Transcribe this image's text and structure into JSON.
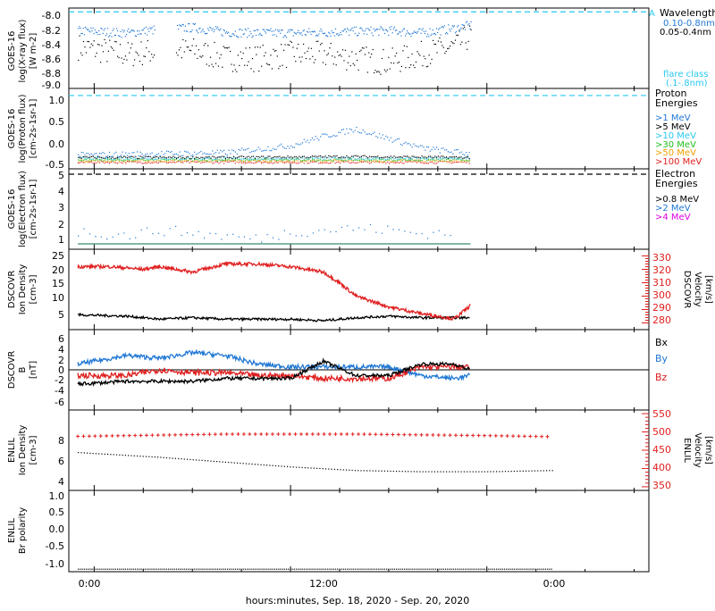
{
  "colors": {
    "black": "#000000",
    "blue": "#1f77d4",
    "cyan": "#28c8f0",
    "green": "#23c01e",
    "orange": "#f0a000",
    "red": "#e02020",
    "magenta": "#e000e0"
  },
  "x_axis": {
    "label": "hours:minutes, Sep. 18, 2020 - Sep. 20, 2020",
    "ticks": [
      "0:00",
      "12:00",
      "0:00"
    ]
  },
  "panels": {
    "xray": {
      "ylabel": [
        "GOES-16",
        "log(X-ray flux)",
        "[W m-2]"
      ],
      "ticks": [
        "-8.0",
        "-8.2",
        "-8.4",
        "-8.6",
        "-8.8",
        "-9.0"
      ],
      "legend_title": "Wavelength",
      "legend_marker": "A",
      "legend": [
        "0.10-0.8nm",
        "0.05-0.4nm"
      ],
      "flare_label": [
        "flare class",
        "(.1-.8nm)"
      ]
    },
    "proton": {
      "ylabel": [
        "GOES-16",
        "log(Proton flux)",
        "[cm-2s-1sr-1]"
      ],
      "ticks": [
        "1.0",
        "0.5",
        "0.0",
        "-0.5"
      ],
      "legend_title": [
        "Proton",
        "Energies"
      ],
      "legend": [
        ">1 MeV",
        ">5 MeV",
        ">10 MeV",
        ">30 MeV",
        ">50 MeV",
        ">100 MeV"
      ]
    },
    "electron": {
      "ylabel": [
        "GOES-16",
        "log(Electron flux)",
        "[cm-2s-1sr-1]"
      ],
      "ticks": [
        "5",
        "4",
        "3",
        "2",
        "1"
      ],
      "legend_title": [
        "Electron",
        "Energies"
      ],
      "legend": [
        ">0.8 MeV",
        ">2 MeV",
        ">4 MeV"
      ]
    },
    "dscovr_plasma": {
      "ylabel": [
        "DSCOVR",
        "Ion Density",
        "[cm-3]"
      ],
      "ticks_left": [
        "25",
        "20",
        "15",
        "10",
        "5"
      ],
      "ylabel_right": [
        "DSCOVR",
        "Velocity",
        "[km/s]"
      ],
      "ticks_right": [
        "330",
        "320",
        "310",
        "300",
        "290",
        "280"
      ]
    },
    "dscovr_mag": {
      "ylabel": [
        "DSCOVR",
        "B",
        "[nT]"
      ],
      "ticks": [
        "6",
        "4",
        "2",
        "0",
        "-2",
        "-4",
        "-6"
      ],
      "legend": [
        "Bx",
        "By",
        "Bz"
      ]
    },
    "enlil_plasma": {
      "ylabel": [
        "ENLIL",
        "Ion Density",
        "[cm-3]"
      ],
      "ticks_left": [
        "8",
        "6",
        "4"
      ],
      "ylabel_right": [
        "ENLIL",
        "Velocity",
        "[km/s]"
      ],
      "ticks_right": [
        "550",
        "500",
        "450",
        "400",
        "350"
      ]
    },
    "enlil_polarity": {
      "ylabel": [
        "ENLIL",
        "Br polarity"
      ],
      "ticks": [
        "1.0",
        "0.5",
        "0.0",
        "-0.5",
        "-1.0"
      ]
    }
  },
  "chart_data": [
    {
      "type": "scatter",
      "panel": "GOES-16 X-ray flux",
      "x_unit": "hours since Sep. 18 0:00",
      "ylim": [
        -9.0,
        -7.95
      ],
      "threshold": -8.0,
      "series": [
        {
          "name": "0.10-0.8nm",
          "x": [
            -1,
            2,
            4,
            6,
            8,
            10,
            12,
            14,
            16,
            18,
            20,
            22,
            23
          ],
          "y": [
            -8.24,
            -8.27,
            -8.22,
            -8.2,
            -8.26,
            -8.27,
            -8.27,
            -8.26,
            -8.25,
            -8.24,
            -8.27,
            -8.21,
            -8.17
          ]
        },
        {
          "name": "0.05-0.4nm",
          "x": [
            -1,
            2,
            4,
            6,
            8,
            10,
            12,
            14,
            16,
            18,
            20,
            22,
            23
          ],
          "y": [
            -8.45,
            -8.55,
            -8.5,
            -8.5,
            -8.6,
            -8.6,
            -8.55,
            -8.55,
            -8.6,
            -8.65,
            -8.55,
            -8.45,
            -8.3
          ]
        }
      ]
    },
    {
      "type": "scatter",
      "panel": "GOES-16 Proton flux",
      "x_unit": "hours since Sep. 18 0:00",
      "ylim": [
        -0.55,
        1.15
      ],
      "threshold": 1.0,
      "series": [
        {
          "name": ">1 MeV",
          "x": [
            -1,
            4,
            8,
            12,
            14,
            16,
            18,
            20,
            23
          ],
          "y": [
            -0.25,
            -0.22,
            -0.2,
            -0.05,
            0.15,
            0.3,
            0.1,
            -0.1,
            -0.22
          ]
        },
        {
          "name": ">5 MeV",
          "x": [
            -1,
            8,
            16,
            23
          ],
          "y": [
            -0.3,
            -0.3,
            -0.28,
            -0.3
          ]
        },
        {
          "name": ">10 MeV",
          "x": [
            -1,
            8,
            16,
            23
          ],
          "y": [
            -0.32,
            -0.32,
            -0.32,
            -0.32
          ]
        },
        {
          "name": ">30 MeV",
          "x": [
            -1,
            8,
            16,
            23
          ],
          "y": [
            -0.35,
            -0.35,
            -0.35,
            -0.35
          ]
        },
        {
          "name": ">50 MeV",
          "x": [
            -1,
            8,
            16,
            23
          ],
          "y": [
            -0.37,
            -0.37,
            -0.37,
            -0.37
          ]
        },
        {
          "name": ">100 MeV",
          "x": [
            -1,
            8,
            16,
            23
          ],
          "y": [
            -0.4,
            -0.4,
            -0.4,
            -0.4
          ]
        }
      ]
    },
    {
      "type": "scatter",
      "panel": "GOES-16 Electron flux",
      "x_unit": "hours since Sep. 18 0:00",
      "ylim": [
        0.6,
        5.1
      ],
      "threshold": 4.8,
      "series": [
        {
          "name": ">0.8 MeV",
          "x": [
            -1,
            23
          ],
          "y": [
            0.9,
            0.9
          ]
        },
        {
          "name": ">2 MeV",
          "x": [
            -1,
            2,
            4,
            10,
            12,
            16,
            18,
            20,
            22
          ],
          "y": [
            1.6,
            1.4,
            1.7,
            1.2,
            1.6,
            1.8,
            1.7,
            1.5,
            1.6
          ]
        }
      ]
    },
    {
      "type": "line",
      "panel": "DSCOVR Plasma",
      "x_unit": "hours since Sep. 18 0:00",
      "ylim": [
        0,
        27
      ],
      "ylim_right": [
        275,
        335
      ],
      "series": [
        {
          "name": "Ion Density",
          "x": [
            -1,
            2,
            4,
            6,
            8,
            10,
            12,
            14,
            16,
            18,
            20,
            23
          ],
          "y": [
            5,
            4.5,
            3.5,
            4,
            3.5,
            3.5,
            3.5,
            3,
            4,
            4.5,
            4,
            4
          ]
        },
        {
          "name": "Velocity",
          "x": [
            -1,
            1,
            3,
            4,
            6,
            8,
            10,
            12,
            14,
            15,
            16,
            18,
            20,
            22,
            23
          ],
          "y": [
            322,
            322,
            320,
            322,
            318,
            324,
            324,
            322,
            318,
            310,
            300,
            292,
            287,
            283,
            293
          ]
        }
      ]
    },
    {
      "type": "line",
      "panel": "DSCOVR Magnetic field",
      "x_unit": "hours since Sep. 18 0:00",
      "ylim": [
        -7,
        7
      ],
      "series": [
        {
          "name": "Bx",
          "x": [
            -1,
            2,
            4,
            6,
            8,
            10,
            12,
            14,
            16,
            18,
            20,
            22,
            23
          ],
          "y": [
            -2.5,
            -2,
            -2,
            -2,
            -1.5,
            -1.5,
            -1.5,
            1.5,
            -1,
            -1,
            1,
            1,
            0
          ]
        },
        {
          "name": "By",
          "x": [
            -1,
            2,
            4,
            6,
            8,
            10,
            12,
            14,
            16,
            18,
            20,
            22,
            23
          ],
          "y": [
            1,
            2.5,
            2,
            3,
            2.5,
            1,
            0.5,
            0.5,
            0.5,
            0.5,
            -1,
            -1.5,
            -1
          ]
        },
        {
          "name": "Bz",
          "x": [
            -1,
            2,
            4,
            6,
            8,
            10,
            12,
            14,
            16,
            18,
            20,
            22,
            23
          ],
          "y": [
            -1,
            -1,
            0,
            -0.5,
            -0.5,
            -1,
            -1,
            -1.5,
            -1.5,
            -1.5,
            0.5,
            0.5,
            0.5
          ]
        }
      ]
    },
    {
      "type": "line",
      "panel": "ENLIL Plasma",
      "x_unit": "hours since Sep. 18 0:00",
      "ylim": [
        3,
        9.7
      ],
      "ylim_right": [
        340,
        560
      ],
      "series": [
        {
          "name": "Ion Density",
          "x": [
            -1,
            4,
            8,
            12,
            16,
            20,
            24,
            28
          ],
          "y": [
            6.2,
            5.8,
            5.4,
            5.0,
            4.7,
            4.6,
            4.6,
            4.7
          ]
        },
        {
          "name": "Velocity",
          "x": [
            -1,
            8,
            16,
            24,
            28
          ],
          "y": [
            488,
            494,
            494,
            490,
            487
          ]
        }
      ]
    },
    {
      "type": "scatter",
      "panel": "ENLIL Br polarity",
      "x_unit": "hours since Sep. 18 0:00",
      "ylim": [
        -1.08,
        1.05
      ],
      "series": [
        {
          "x": [
            -1,
            28
          ],
          "y": [
            -1,
            -1
          ]
        }
      ]
    }
  ]
}
